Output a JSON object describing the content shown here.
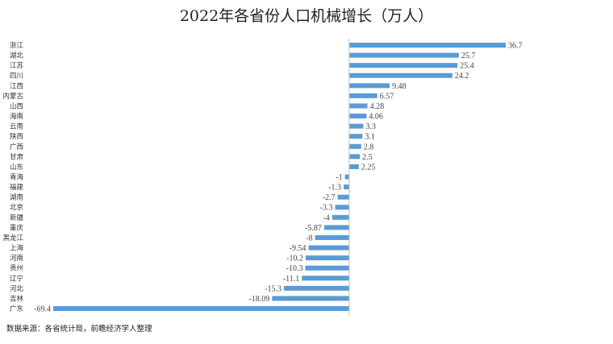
{
  "chart_data": {
    "type": "bar",
    "orientation": "horizontal",
    "title": "2022年各省份人口机械增长（万人）",
    "xlabel": "",
    "ylabel": "",
    "categories": [
      "浙江",
      "湖北",
      "江苏",
      "四川",
      "江西",
      "内蒙古",
      "山西",
      "海南",
      "云南",
      "陕西",
      "广西",
      "甘肃",
      "山东",
      "青海",
      "福建",
      "湖南",
      "北京",
      "新疆",
      "重庆",
      "黑龙江",
      "上海",
      "河南",
      "贵州",
      "辽宁",
      "河北",
      "吉林",
      "广东"
    ],
    "values": [
      36.7,
      25.7,
      25.4,
      24.2,
      9.48,
      6.57,
      4.28,
      4.06,
      3.3,
      3.1,
      2.8,
      2.5,
      2.25,
      -1,
      -1.3,
      -2.7,
      -3.3,
      -4,
      -5.87,
      -8,
      -9.54,
      -10.2,
      -10.3,
      -11.1,
      -15.3,
      -18.09,
      -69.4
    ],
    "value_labels": [
      "36.7",
      "25.7",
      "25.4",
      "24.2",
      "9.48",
      "6.57",
      "4.28",
      "4.06",
      "3.3",
      "3.1",
      "2.8",
      "2.5",
      "2.25",
      "-1",
      "-1.3",
      "-2.7",
      "-3.3",
      "-4",
      "-5.87",
      "-8",
      "-9.54",
      "-10.2",
      "-10.3",
      "-11.1",
      "-15.3",
      "-18.09",
      "-69.4"
    ],
    "xlim": [
      -69.4,
      36.7
    ],
    "grid": false,
    "legend": "none",
    "bar_color": "#5B9BD5",
    "axis_color": "#BFBFBF"
  },
  "source_note": "数据来源：各省统计局，前瞻经济学人整理"
}
